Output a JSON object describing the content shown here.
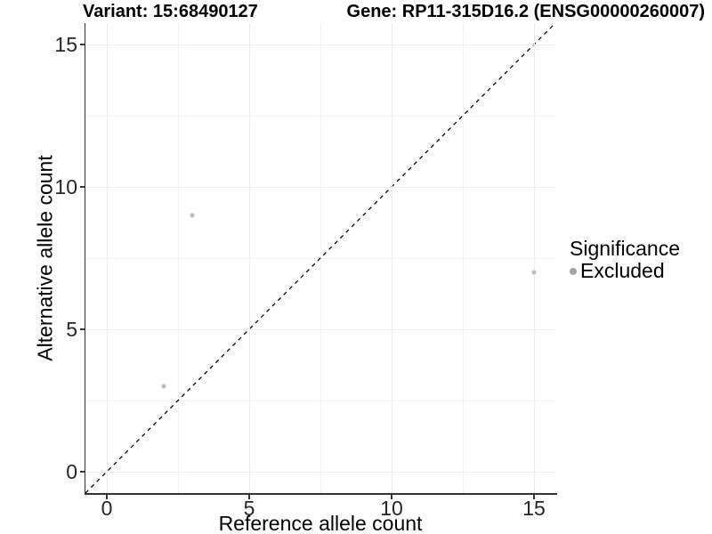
{
  "chart_data": {
    "type": "scatter",
    "title_left": "Variant: 15:68490127",
    "title_right": "Gene: RP11-315D16.2 (ENSG00000260007)",
    "xlabel": "Reference allele count",
    "ylabel": "Alternative allele count",
    "xlim": [
      -0.75,
      15.75
    ],
    "ylim": [
      -0.75,
      15.75
    ],
    "x_ticks": [
      0,
      5,
      10,
      15
    ],
    "y_ticks": [
      0,
      5,
      10,
      15
    ],
    "grid_major": [
      0,
      5,
      10,
      15
    ],
    "grid_minor": [
      2.5,
      7.5,
      12.5
    ],
    "series": [
      {
        "name": "Excluded",
        "point_color": "#bdbdbd",
        "points": [
          {
            "x": 3,
            "y": 9
          },
          {
            "x": 2,
            "y": 3
          },
          {
            "x": 15,
            "y": 7
          }
        ]
      }
    ],
    "reference_line": {
      "type": "identity y=x",
      "style": "dashed",
      "color": "#000000"
    },
    "legend": {
      "title": "Significance",
      "position": "right",
      "entries": [
        {
          "label": "Excluded",
          "key_color": "#a3a3a3"
        }
      ]
    },
    "colors": {
      "axis_line": "#333333",
      "grid_major": "#ececec",
      "grid_minor": "#f3f3f3",
      "background": "#ffffff"
    }
  }
}
